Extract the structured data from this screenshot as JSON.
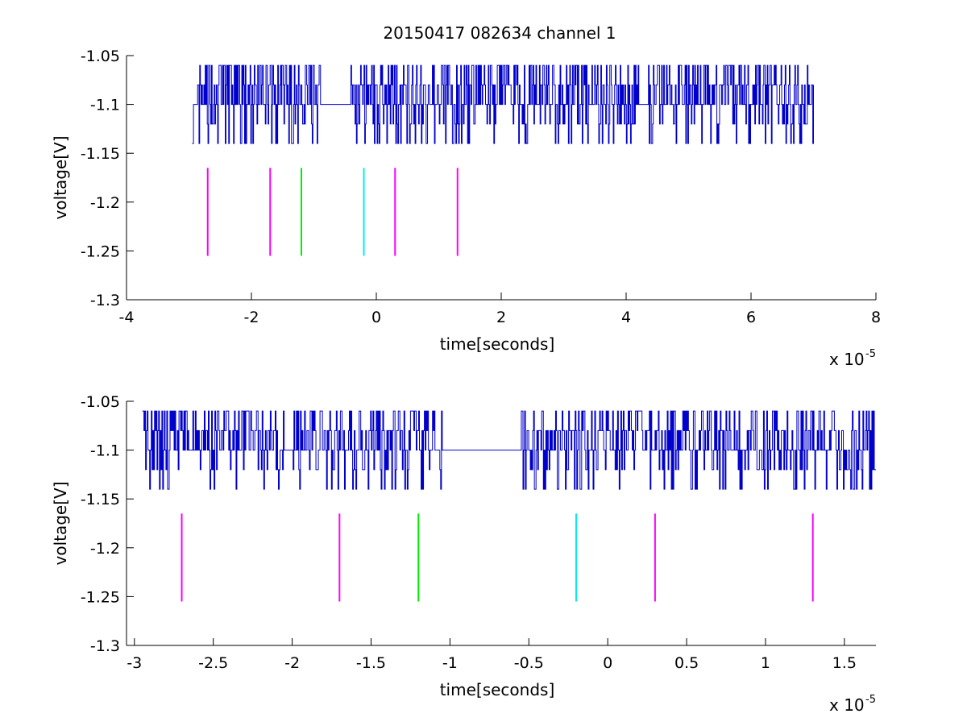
{
  "figure": {
    "title": "20150417 082634 channel 1"
  },
  "chart_data": [
    {
      "type": "line",
      "xlabel": "time[seconds]",
      "ylabel": "voltage[V]",
      "x_exponent_label": "x 10",
      "x_exponent": "-5",
      "xlim": [
        -4,
        8
      ],
      "ylim": [
        -1.3,
        -1.05
      ],
      "x_ticks": [
        -4,
        -2,
        0,
        2,
        4,
        6,
        8
      ],
      "x_tick_labels": [
        "-4",
        "-2",
        "0",
        "2",
        "4",
        "6",
        "8"
      ],
      "y_ticks": [
        -1.3,
        -1.25,
        -1.2,
        -1.15,
        -1.1,
        -1.05
      ],
      "y_tick_labels": [
        "-1.3",
        "-1.25",
        "-1.2",
        "-1.15",
        "-1.1",
        "-1.05"
      ],
      "grid": false,
      "series": [
        {
          "color": "#0000cc",
          "x_range": [
            -2.95,
            7.0
          ],
          "levels": [
            -1.06,
            -1.08,
            -1.1,
            -1.12,
            -1.14
          ],
          "description_values": "noisy signal toggling between -1.06 and -1.14, mostly -1.10"
        }
      ],
      "markers": [
        {
          "x": -2.7,
          "y0": -1.255,
          "y1": -1.165,
          "color": "#ff00ff"
        },
        {
          "x": -1.7,
          "y0": -1.255,
          "y1": -1.165,
          "color": "#ff00ff"
        },
        {
          "x": -1.2,
          "y0": -1.255,
          "y1": -1.165,
          "color": "#00ee00"
        },
        {
          "x": -0.2,
          "y0": -1.255,
          "y1": -1.165,
          "color": "#00eeee"
        },
        {
          "x": 0.3,
          "y0": -1.255,
          "y1": -1.165,
          "color": "#ff00ff"
        },
        {
          "x": 1.3,
          "y0": -1.255,
          "y1": -1.165,
          "color": "#ff00ff"
        }
      ]
    },
    {
      "type": "line",
      "xlabel": "time[seconds]",
      "ylabel": "voltage[V]",
      "x_exponent_label": "x 10",
      "x_exponent": "-5",
      "xlim": [
        -3.05,
        1.7
      ],
      "ylim": [
        -1.3,
        -1.05
      ],
      "x_ticks": [
        -3,
        -2.5,
        -2,
        -1.5,
        -1,
        -0.5,
        0,
        0.5,
        1,
        1.5
      ],
      "x_tick_labels": [
        "-3",
        "-2.5",
        "-2",
        "-1.5",
        "-1",
        "-0.5",
        "0",
        "0.5",
        "1",
        "1.5"
      ],
      "y_ticks": [
        -1.3,
        -1.25,
        -1.2,
        -1.15,
        -1.1,
        -1.05
      ],
      "y_tick_labels": [
        "-1.3",
        "-1.25",
        "-1.2",
        "-1.15",
        "-1.1",
        "-1.05"
      ],
      "grid": false,
      "series": [
        {
          "color": "#0000cc",
          "x_range": [
            -2.95,
            1.7
          ],
          "levels": [
            -1.06,
            -1.08,
            -1.1,
            -1.12,
            -1.14
          ]
        }
      ],
      "markers": [
        {
          "x": -2.7,
          "y0": -1.255,
          "y1": -1.165,
          "color": "#ff00ff"
        },
        {
          "x": -1.7,
          "y0": -1.255,
          "y1": -1.165,
          "color": "#ff00ff"
        },
        {
          "x": -1.2,
          "y0": -1.255,
          "y1": -1.165,
          "color": "#00ee00"
        },
        {
          "x": -0.2,
          "y0": -1.255,
          "y1": -1.165,
          "color": "#00eeee"
        },
        {
          "x": 0.3,
          "y0": -1.255,
          "y1": -1.165,
          "color": "#ff00ff"
        },
        {
          "x": 1.3,
          "y0": -1.255,
          "y1": -1.165,
          "color": "#ff00ff"
        }
      ]
    }
  ]
}
